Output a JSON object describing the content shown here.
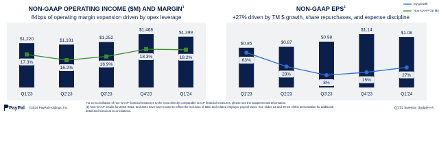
{
  "chart_data": [
    {
      "type": "bar",
      "title": "NON-GAAP OPERATING INCOME ($M) AND MARGIN",
      "title_note": "1",
      "subtitle": "84bps of operating margin expansion driven by opex leverage",
      "categories": [
        "Q1'23",
        "Q2'23",
        "Q3'23",
        "Q4'23",
        "Q1'24"
      ],
      "series": [
        {
          "color": "#0b1f4b",
          "values": [
            1220,
            1181,
            1252,
            1468,
            1399
          ],
          "value_labels": [
            "$1,220",
            "$1,181",
            "$1,252",
            "$1,468",
            "$1,399"
          ]
        },
        {
          "type": "line",
          "name": "Non-GAAP Op Margin",
          "color": "#3a8a2c",
          "values": [
            17.3,
            16.2,
            16.9,
            18.3,
            18.2
          ],
          "value_labels": [
            "17.3%",
            "16.2%",
            "16.9%",
            "18.3%",
            "18.2%"
          ]
        }
      ]
    },
    {
      "type": "bar",
      "title": "NON-GAAP EPS",
      "title_note": "1",
      "subtitle": "+27% driven by TM $ growth, share repurchases, and expense discipline",
      "categories": [
        "Q1'23",
        "Q2'23",
        "Q3'23",
        "Q4'23",
        "Q1'24"
      ],
      "series": [
        {
          "color": "#0b1f4b",
          "values": [
            0.85,
            0.87,
            0.98,
            1.14,
            1.08
          ],
          "value_labels": [
            "$0.85",
            "$0.87",
            "$0.98",
            "$1.14",
            "$1.08"
          ]
        },
        {
          "type": "line",
          "name": "y/y growth",
          "color": "#2a6dd9",
          "values": [
            63,
            29,
            8,
            15,
            27
          ],
          "value_labels": [
            "63%",
            "29%",
            "8%",
            "15%",
            "27%"
          ]
        }
      ]
    }
  ],
  "footer": {
    "logo": "PayPal",
    "copyright": "©2024 PayPal Holdings, Inc.",
    "notes": [
      "For a reconciliation of non-GAAP financial measures to the most directly comparable GAAP financial measures, please see the Supplemental Information.",
      "(1) Non-GAAP results for 2023, 2022, and 2021 have been recast to reflect the inclusion of SBC and related employer payroll taxes. See slides 13 and 20-22 of this presentation for additional",
      "detail and historical reconciliations."
    ],
    "page": "Q1'24 Investor Update • 6"
  }
}
